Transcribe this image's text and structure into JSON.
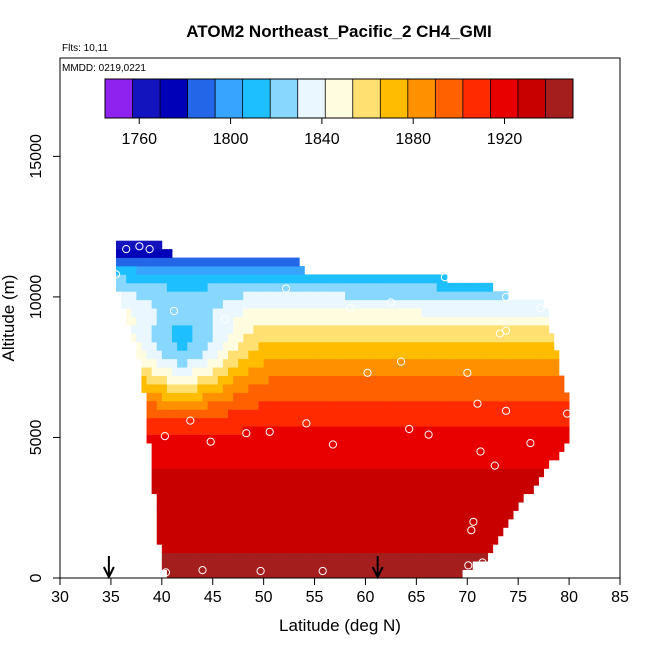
{
  "chart_data": {
    "type": "heatmap",
    "title": "ATOM2 Northeast_Pacific_2 CH4_GMI",
    "flights_note": "Flts: 10,11",
    "date_note": "MMDD: 0219,0221",
    "xlabel": "Latitude (deg N)",
    "ylabel": "Altitude (m)",
    "xlim": [
      30,
      85
    ],
    "ylim": [
      0,
      18500
    ],
    "x_ticks": [
      "30",
      "35",
      "40",
      "45",
      "50",
      "55",
      "60",
      "65",
      "70",
      "75",
      "80",
      "85"
    ],
    "y_ticks": [
      "0",
      "5000",
      "10000",
      "15000"
    ],
    "colorbar": {
      "range": [
        1745,
        1950
      ],
      "tick_values": [
        1760,
        1800,
        1840,
        1880,
        1920
      ],
      "tick_labels": [
        "1760",
        "1800",
        "1840",
        "1880",
        "1920"
      ],
      "colors": [
        "#8f22ef",
        "#1414bf",
        "#0000b8",
        "#2466e8",
        "#37a4ff",
        "#1ebfff",
        "#87d7ff",
        "#eaf7ff",
        "#fffce0",
        "#ffe070",
        "#ffbc00",
        "#ff9000",
        "#ff6000",
        "#ff2a00",
        "#e80000",
        "#c80000",
        "#a51e1e"
      ]
    },
    "profile_envelope": [
      {
        "lat": 35.5,
        "top": 11900,
        "bottom": 10600
      },
      {
        "lat": 38,
        "top": 11900,
        "bottom": 7500
      },
      {
        "lat": 40,
        "top": 11900,
        "bottom": 200
      },
      {
        "lat": 42,
        "top": 11300,
        "bottom": 0
      },
      {
        "lat": 53.5,
        "top": 11300,
        "bottom": 0
      },
      {
        "lat": 54,
        "top": 10800,
        "bottom": 0
      },
      {
        "lat": 68,
        "top": 10800,
        "bottom": 0
      },
      {
        "lat": 68.5,
        "top": 10400,
        "bottom": 0
      },
      {
        "lat": 72,
        "top": 10400,
        "bottom": 700
      },
      {
        "lat": 75,
        "top": 9900,
        "bottom": 2500
      },
      {
        "lat": 77.5,
        "top": 9900,
        "bottom": 3800
      },
      {
        "lat": 78.5,
        "top": 8400,
        "bottom": 4200
      },
      {
        "lat": 80,
        "top": 6200,
        "bottom": 4900
      }
    ],
    "vertical_profile_m": [
      {
        "alt": 0,
        "ch4": 1945
      },
      {
        "alt": 1000,
        "ch4": 1938
      },
      {
        "alt": 2000,
        "ch4": 1934
      },
      {
        "alt": 3000,
        "ch4": 1930
      },
      {
        "alt": 4000,
        "ch4": 1925
      },
      {
        "alt": 5000,
        "ch4": 1918
      },
      {
        "alt": 6000,
        "ch4": 1906
      },
      {
        "alt": 7000,
        "ch4": 1893
      },
      {
        "alt": 8000,
        "ch4": 1876
      },
      {
        "alt": 9000,
        "ch4": 1856
      },
      {
        "alt": 10000,
        "ch4": 1832
      },
      {
        "alt": 10800,
        "ch4": 1808
      },
      {
        "alt": 11500,
        "ch4": 1775
      },
      {
        "alt": 12000,
        "ch4": 1752
      }
    ],
    "trough": {
      "lat": 42,
      "width_lat": 5,
      "alt_center": 8000,
      "amplitude": 55
    },
    "sample_points": [
      {
        "lat": 36.5,
        "alt": 11700
      },
      {
        "lat": 37.8,
        "alt": 11800
      },
      {
        "lat": 38.8,
        "alt": 11700
      },
      {
        "lat": 35.5,
        "alt": 10800
      },
      {
        "lat": 41.2,
        "alt": 9500
      },
      {
        "lat": 46.2,
        "alt": 9200
      },
      {
        "lat": 52.2,
        "alt": 10300
      },
      {
        "lat": 58.5,
        "alt": 9600
      },
      {
        "lat": 62.5,
        "alt": 9800
      },
      {
        "lat": 67.8,
        "alt": 10700
      },
      {
        "lat": 73.8,
        "alt": 10000
      },
      {
        "lat": 77.2,
        "alt": 9600
      },
      {
        "lat": 78.3,
        "alt": 9600
      },
      {
        "lat": 73.2,
        "alt": 8700
      },
      {
        "lat": 73.8,
        "alt": 8800
      },
      {
        "lat": 63.5,
        "alt": 7700
      },
      {
        "lat": 60.2,
        "alt": 7300
      },
      {
        "lat": 70,
        "alt": 7300
      },
      {
        "lat": 71,
        "alt": 6200
      },
      {
        "lat": 73.8,
        "alt": 5950
      },
      {
        "lat": 79.8,
        "alt": 5850
      },
      {
        "lat": 42.8,
        "alt": 5600
      },
      {
        "lat": 54.2,
        "alt": 5500
      },
      {
        "lat": 40.3,
        "alt": 5050
      },
      {
        "lat": 44.8,
        "alt": 4850
      },
      {
        "lat": 48.3,
        "alt": 5150
      },
      {
        "lat": 50.6,
        "alt": 5200
      },
      {
        "lat": 56.8,
        "alt": 4750
      },
      {
        "lat": 64.3,
        "alt": 5300
      },
      {
        "lat": 66.2,
        "alt": 5100
      },
      {
        "lat": 76.2,
        "alt": 4800
      },
      {
        "lat": 71.3,
        "alt": 4500
      },
      {
        "lat": 72.7,
        "alt": 4000
      },
      {
        "lat": 70.6,
        "alt": 2000
      },
      {
        "lat": 70.4,
        "alt": 1700
      },
      {
        "lat": 70.1,
        "alt": 450
      },
      {
        "lat": 71.5,
        "alt": 550
      },
      {
        "lat": 40.4,
        "alt": 200
      },
      {
        "lat": 44,
        "alt": 280
      },
      {
        "lat": 49.7,
        "alt": 250
      },
      {
        "lat": 55.8,
        "alt": 250
      }
    ],
    "arrows_lat": [
      34.8,
      61.2
    ]
  }
}
